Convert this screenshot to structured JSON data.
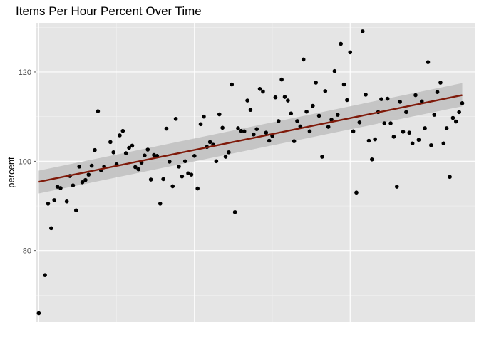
{
  "chart_data": {
    "type": "scatter",
    "title": "Items Per Hour Percent Over Time",
    "xlabel": "",
    "ylabel": "percent",
    "x_tick_labels": [],
    "y_ticks": [
      80,
      100,
      120
    ],
    "xlim": [
      -1,
      140
    ],
    "ylim": [
      64,
      131
    ],
    "grid": true,
    "colors": {
      "panel": "#e5e5e5",
      "grid_major": "#ffffff",
      "grid_minor": "#f2f2f2",
      "points": "#000000",
      "trend": "#7f1a0a",
      "band": "#bfbfbf"
    },
    "points": [
      [
        0,
        66
      ],
      [
        2,
        74.5
      ],
      [
        3,
        90.5
      ],
      [
        4,
        85
      ],
      [
        5,
        91.3
      ],
      [
        6,
        94.3
      ],
      [
        7,
        94
      ],
      [
        9,
        91
      ],
      [
        10,
        96.7
      ],
      [
        11,
        94.6
      ],
      [
        12,
        89
      ],
      [
        13,
        98.8
      ],
      [
        14,
        95.3
      ],
      [
        15,
        95.8
      ],
      [
        16,
        97
      ],
      [
        17,
        99
      ],
      [
        18,
        102.5
      ],
      [
        19,
        111.2
      ],
      [
        20,
        98
      ],
      [
        21,
        98.8
      ],
      [
        23,
        104.3
      ],
      [
        24,
        102
      ],
      [
        25,
        99.3
      ],
      [
        26,
        105.8
      ],
      [
        27,
        106.8
      ],
      [
        28,
        101.8
      ],
      [
        29,
        103
      ],
      [
        30,
        103.5
      ],
      [
        31,
        98.7
      ],
      [
        32,
        98.2
      ],
      [
        33,
        99.7
      ],
      [
        34,
        101.3
      ],
      [
        35,
        102.6
      ],
      [
        36,
        95.9
      ],
      [
        37,
        101.4
      ],
      [
        38,
        101.2
      ],
      [
        39,
        90.5
      ],
      [
        40,
        96
      ],
      [
        41,
        107.3
      ],
      [
        42,
        99.9
      ],
      [
        43,
        94.4
      ],
      [
        44,
        109.5
      ],
      [
        45,
        98.8
      ],
      [
        46,
        96.6
      ],
      [
        47,
        100
      ],
      [
        48,
        97.3
      ],
      [
        49,
        97
      ],
      [
        50,
        101.2
      ],
      [
        51,
        93.9
      ],
      [
        52,
        108.3
      ],
      [
        53,
        110
      ],
      [
        54,
        103.2
      ],
      [
        55,
        104.3
      ],
      [
        56,
        103.7
      ],
      [
        57,
        100
      ],
      [
        58,
        110.5
      ],
      [
        59,
        107.5
      ],
      [
        60,
        101
      ],
      [
        61,
        102
      ],
      [
        62,
        117.2
      ],
      [
        63,
        88.6
      ],
      [
        64,
        107.4
      ],
      [
        65,
        106.8
      ],
      [
        66,
        106.7
      ],
      [
        67,
        113.6
      ],
      [
        68,
        111.5
      ],
      [
        69,
        106
      ],
      [
        70,
        107.2
      ],
      [
        71,
        116.2
      ],
      [
        72,
        115.6
      ],
      [
        73,
        106.4
      ],
      [
        74,
        104.6
      ],
      [
        75,
        105.7
      ],
      [
        76,
        114.3
      ],
      [
        77,
        109
      ],
      [
        78,
        118.3
      ],
      [
        79,
        114.4
      ],
      [
        80,
        113.6
      ],
      [
        81,
        110.7
      ],
      [
        82,
        104.5
      ],
      [
        83,
        109
      ],
      [
        84,
        107.8
      ],
      [
        85,
        122.8
      ],
      [
        86,
        111.1
      ],
      [
        87,
        106.7
      ],
      [
        88,
        112.4
      ],
      [
        89,
        117.6
      ],
      [
        90,
        110.2
      ],
      [
        91,
        101
      ],
      [
        92,
        115.7
      ],
      [
        93,
        107.7
      ],
      [
        94,
        109.3
      ],
      [
        95,
        120.2
      ],
      [
        96,
        110.4
      ],
      [
        97,
        126.3
      ],
      [
        98,
        117.2
      ],
      [
        99,
        113.7
      ],
      [
        100,
        124.4
      ],
      [
        101,
        106.7
      ],
      [
        102,
        93
      ],
      [
        103,
        108.7
      ],
      [
        104,
        129.1
      ],
      [
        105,
        114.9
      ],
      [
        106,
        104.6
      ],
      [
        107,
        100.4
      ],
      [
        108,
        104.9
      ],
      [
        109,
        111
      ],
      [
        110,
        113.9
      ],
      [
        111,
        108.5
      ],
      [
        112,
        114
      ],
      [
        113,
        108.5
      ],
      [
        114,
        105.5
      ],
      [
        115,
        94.3
      ],
      [
        116,
        113.3
      ],
      [
        117,
        106.6
      ],
      [
        118,
        111
      ],
      [
        119,
        106.4
      ],
      [
        120,
        104
      ],
      [
        121,
        114.8
      ],
      [
        122,
        104.8
      ],
      [
        123,
        113.4
      ],
      [
        124,
        107.4
      ],
      [
        125,
        122.2
      ],
      [
        126,
        103.6
      ],
      [
        127,
        110.4
      ],
      [
        128,
        115.5
      ],
      [
        129,
        117.6
      ],
      [
        130,
        104
      ],
      [
        131,
        107.4
      ],
      [
        132,
        96.5
      ],
      [
        133,
        109.7
      ],
      [
        134,
        108.9
      ],
      [
        135,
        111
      ],
      [
        136,
        113
      ]
    ],
    "trend": {
      "x": [
        0,
        136
      ],
      "y": [
        95.4,
        114.8
      ],
      "ci_lower": [
        92.8,
        112.3
      ],
      "ci_upper": [
        97.9,
        117.5
      ]
    }
  }
}
